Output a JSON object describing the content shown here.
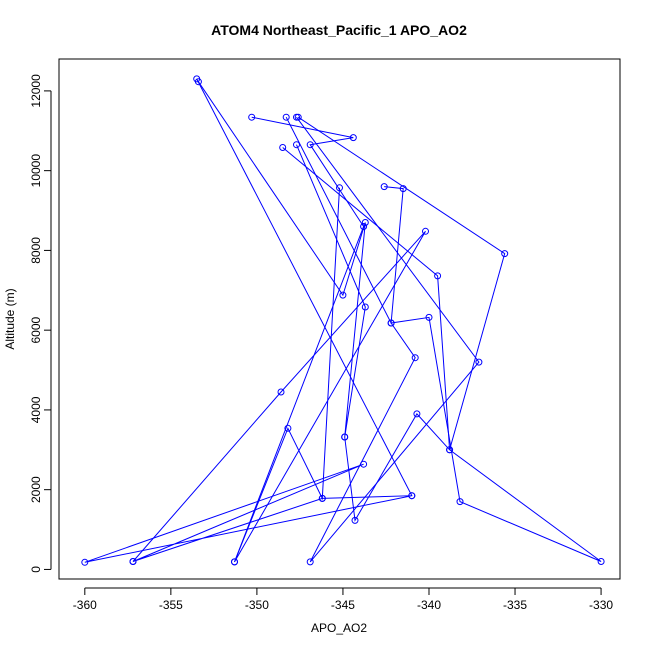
{
  "chart_data": {
    "type": "line",
    "title": "ATOM4 Northeast_Pacific_1 APO_AO2",
    "xlabel": "APO_AO2",
    "ylabel": "Altitude (m)",
    "xlim": [
      -361.5,
      -328.9
    ],
    "ylim": [
      -240,
      12800
    ],
    "x_ticks": [
      -360,
      -355,
      -350,
      -345,
      -340,
      -335,
      -330
    ],
    "y_ticks": [
      0,
      2000,
      4000,
      6000,
      8000,
      10000,
      12000
    ],
    "x_tick_labels": [
      "-360",
      "-355",
      "-350",
      "-345",
      "-340",
      "-335",
      "-330"
    ],
    "y_tick_labels": [
      "0",
      "2000",
      "4000",
      "6000",
      "8000",
      "10000",
      "12000"
    ],
    "series": [
      {
        "color": "#0000ff",
        "marker": "open-circle",
        "points": [
          {
            "x": -353.5,
            "y": 12300
          },
          {
            "x": -341.0,
            "y": 1850
          },
          {
            "x": -346.2,
            "y": 1780
          },
          {
            "x": -357.2,
            "y": 200
          },
          {
            "x": -343.8,
            "y": 2640
          },
          {
            "x": -360.0,
            "y": 180
          },
          {
            "x": -341.0,
            "y": 1850
          }
        ]
      },
      {
        "color": "#0000ff",
        "marker": "open-circle",
        "points": [
          {
            "x": -353.4,
            "y": 12230
          },
          {
            "x": -345.0,
            "y": 6880
          },
          {
            "x": -343.7,
            "y": 8700
          },
          {
            "x": -344.9,
            "y": 3320
          },
          {
            "x": -343.7,
            "y": 6580
          },
          {
            "x": -347.7,
            "y": 10650
          }
        ]
      },
      {
        "color": "#0000ff",
        "marker": "open-circle",
        "points": [
          {
            "x": -350.3,
            "y": 11340
          },
          {
            "x": -344.4,
            "y": 10830
          },
          {
            "x": -346.9,
            "y": 10650
          },
          {
            "x": -343.8,
            "y": 8600
          },
          {
            "x": -351.3,
            "y": 190
          }
        ]
      },
      {
        "color": "#0000ff",
        "marker": "open-circle",
        "points": [
          {
            "x": -348.3,
            "y": 11340
          },
          {
            "x": -342.2,
            "y": 6180
          },
          {
            "x": -340.8,
            "y": 5310
          },
          {
            "x": -346.9,
            "y": 190
          },
          {
            "x": -337.1,
            "y": 5200
          },
          {
            "x": -347.7,
            "y": 11340
          }
        ]
      },
      {
        "color": "#0000ff",
        "marker": "open-circle",
        "points": [
          {
            "x": -347.6,
            "y": 11340
          },
          {
            "x": -335.6,
            "y": 7920
          },
          {
            "x": -338.8,
            "y": 3000
          },
          {
            "x": -339.5,
            "y": 7360
          },
          {
            "x": -348.5,
            "y": 10580
          }
        ]
      },
      {
        "color": "#0000ff",
        "marker": "open-circle",
        "points": [
          {
            "x": -345.2,
            "y": 9570
          },
          {
            "x": -346.2,
            "y": 1780
          },
          {
            "x": -348.2,
            "y": 3540
          },
          {
            "x": -351.3,
            "y": 190
          },
          {
            "x": -340.2,
            "y": 8480
          },
          {
            "x": -348.6,
            "y": 4450
          },
          {
            "x": -357.2,
            "y": 200
          }
        ]
      },
      {
        "color": "#0000ff",
        "marker": "open-circle",
        "points": [
          {
            "x": -342.6,
            "y": 9600
          },
          {
            "x": -341.5,
            "y": 9550
          },
          {
            "x": -342.2,
            "y": 6180
          },
          {
            "x": -340.0,
            "y": 6320
          },
          {
            "x": -338.2,
            "y": 1700
          },
          {
            "x": -330.0,
            "y": 200
          },
          {
            "x": -338.8,
            "y": 3000
          },
          {
            "x": -340.7,
            "y": 3900
          },
          {
            "x": -344.3,
            "y": 1230
          },
          {
            "x": -344.9,
            "y": 3320
          }
        ]
      }
    ]
  }
}
